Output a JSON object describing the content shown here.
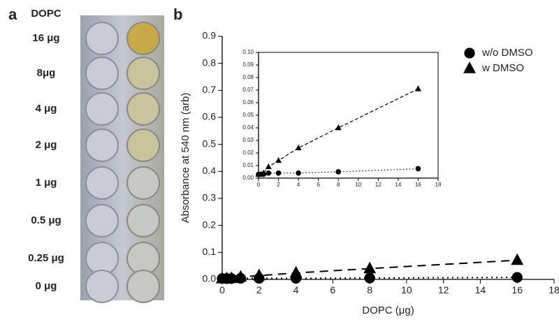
{
  "panel_a": {
    "label": "a",
    "heading": "DOPC",
    "wells": [
      "16 μg",
      "8μg",
      "4 μg",
      "2 μg",
      "1 μg",
      "0.5 μg",
      "0.25 μg",
      "0 μg"
    ]
  },
  "chart_data": [
    {
      "type": "scatter",
      "panel_label": "b",
      "xlabel": "DOPC (μg)",
      "ylabel": "Absorbance at 540 nm (arb)",
      "x": [
        0,
        0.25,
        0.5,
        1,
        2,
        4,
        8,
        16
      ],
      "series": [
        {
          "name": "w/o DMSO",
          "color": "#000000",
          "marker": "circle",
          "linestyle": "dotted",
          "values": [
            0.003,
            0.003,
            0.003,
            0.004,
            0.004,
            0.004,
            0.005,
            0.0075
          ]
        },
        {
          "name": "w DMSO",
          "color": "#000000",
          "marker": "triangle",
          "linestyle": "dashed",
          "values": [
            0.003,
            0.003,
            0.004,
            0.009,
            0.014,
            0.024,
            0.04,
            0.071
          ]
        }
      ],
      "xlim": [
        0,
        18
      ],
      "xticks": [
        0,
        2,
        4,
        6,
        8,
        10,
        12,
        14,
        16,
        18
      ],
      "ylim": [
        0,
        0.9
      ],
      "yticks": [
        {
          "value": 0,
          "label": "0.0"
        },
        0.1,
        0.2,
        0.3,
        0.4,
        0.5,
        0.6,
        0.7,
        0.8,
        0.9
      ],
      "legend": "upper right"
    },
    {
      "type": "scatter",
      "x": [
        0,
        0.25,
        0.5,
        1,
        2,
        4,
        8,
        16
      ],
      "series": [
        {
          "name": "w/o DMSO",
          "color": "#000000",
          "marker": "circle",
          "linestyle": "dotted",
          "values": [
            0.003,
            0.003,
            0.003,
            0.004,
            0.004,
            0.004,
            0.005,
            0.0075
          ]
        },
        {
          "name": "w DMSO",
          "color": "#000000",
          "marker": "triangle",
          "linestyle": "dashed",
          "values": [
            0.003,
            0.003,
            0.004,
            0.009,
            0.014,
            0.024,
            0.04,
            0.071
          ]
        }
      ],
      "xlim": [
        0,
        18
      ],
      "xticks": [
        0,
        2,
        4,
        6,
        8,
        10,
        12,
        14,
        16,
        18
      ],
      "ylim": [
        0,
        0.1
      ],
      "yticks": [
        {
          "value": 0,
          "label": "0.00"
        },
        {
          "value": 0.01,
          "label": "0.01"
        },
        {
          "value": 0.02,
          "label": "0.02"
        },
        {
          "value": 0.03,
          "label": "0.03"
        },
        {
          "value": 0.04,
          "label": "0.04"
        },
        {
          "value": 0.05,
          "label": "0.05"
        },
        {
          "value": 0.06,
          "label": "0.06"
        },
        {
          "value": 0.07,
          "label": "0.07"
        },
        {
          "value": 0.08,
          "label": "0.08"
        },
        {
          "value": 0.09,
          "label": "0.09"
        },
        {
          "value": 0.1,
          "label": "0.10"
        }
      ]
    }
  ]
}
